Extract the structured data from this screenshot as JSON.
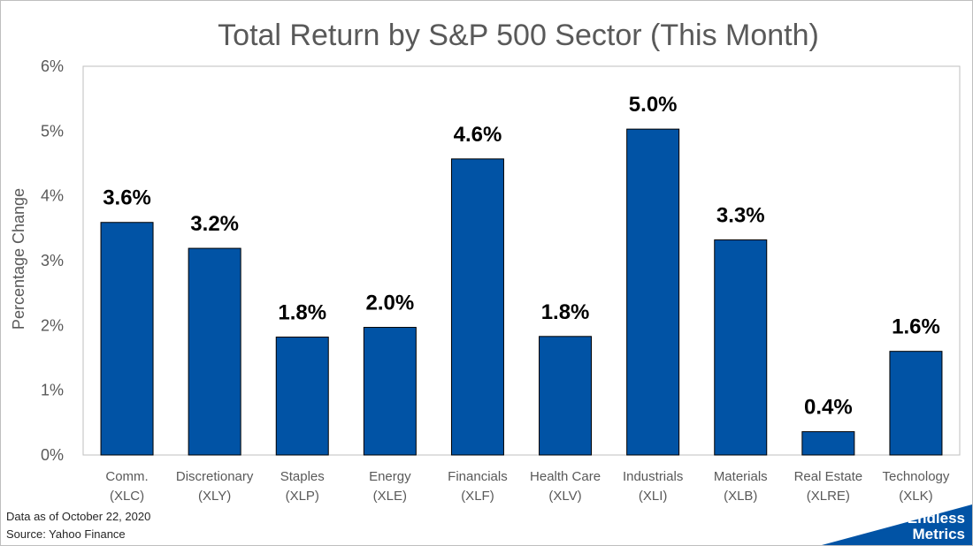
{
  "chart_data": {
    "type": "bar",
    "title": "Total Return by S&P 500 Sector (This Month)",
    "ylabel": "Percentage Change",
    "xlabel": "",
    "ylim": [
      0,
      6
    ],
    "y_ticks": [
      "0%",
      "1%",
      "2%",
      "3%",
      "4%",
      "5%",
      "6%"
    ],
    "grid": false,
    "legend": "none",
    "bar_color": "#0153a5",
    "categories": [
      {
        "name": "Comm.",
        "ticker": "(XLC)"
      },
      {
        "name": "Discretionary",
        "ticker": "(XLY)"
      },
      {
        "name": "Staples",
        "ticker": "(XLP)"
      },
      {
        "name": "Energy",
        "ticker": "(XLE)"
      },
      {
        "name": "Financials",
        "ticker": "(XLF)"
      },
      {
        "name": "Health Care",
        "ticker": "(XLV)"
      },
      {
        "name": "Industrials",
        "ticker": "(XLI)"
      },
      {
        "name": "Materials",
        "ticker": "(XLB)"
      },
      {
        "name": "Real Estate",
        "ticker": "(XLRE)"
      },
      {
        "name": "Technology",
        "ticker": "(XLK)"
      }
    ],
    "values": [
      3.59,
      3.19,
      1.82,
      1.97,
      4.57,
      1.83,
      5.03,
      3.32,
      0.36,
      1.6
    ],
    "data_labels": [
      "3.6%",
      "3.2%",
      "1.8%",
      "2.0%",
      "4.6%",
      "1.8%",
      "5.0%",
      "3.3%",
      "0.4%",
      "1.6%"
    ]
  },
  "footer": {
    "date_note": "Data as of October 22, 2020",
    "source_note": "Source: Yahoo Finance"
  },
  "brand": {
    "line1": "Endless",
    "line2": "Metrics",
    "color": "#0153a5"
  }
}
